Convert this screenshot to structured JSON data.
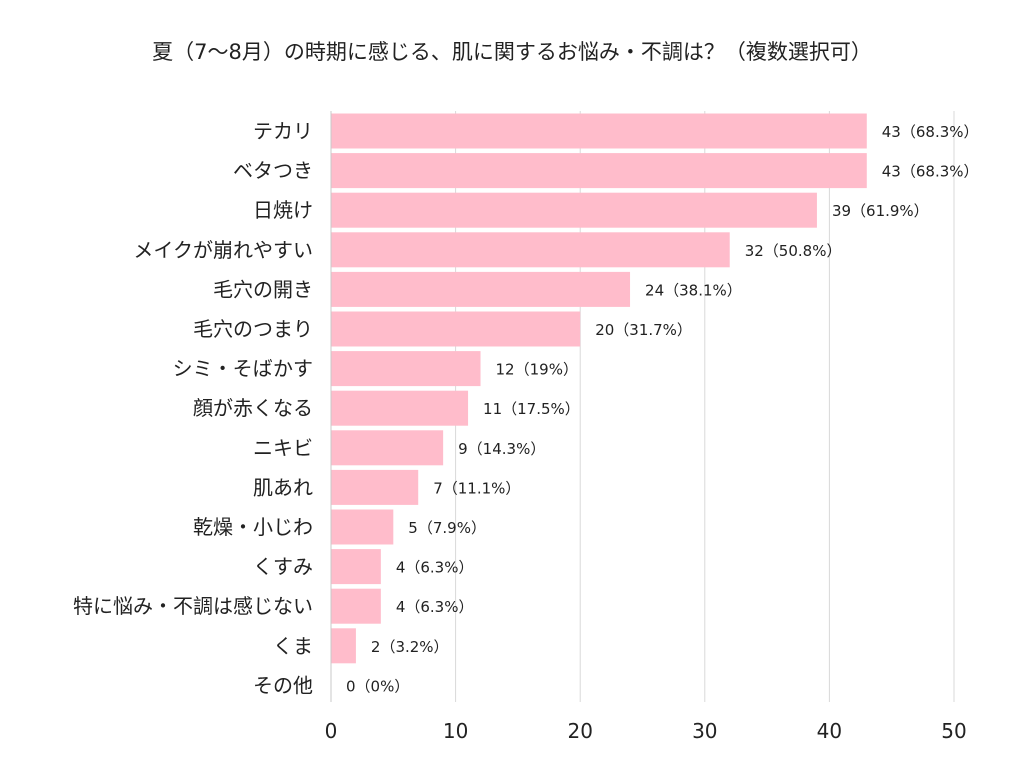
{
  "chart_data": {
    "type": "bar",
    "orientation": "horizontal",
    "title": "夏（7〜8月）の時期に感じる、肌に関するお悩み・不調は？（複数選択可）",
    "categories": [
      "テカリ",
      "ベタつき",
      "日焼け",
      "メイクが崩れやすい",
      "毛穴の開き",
      "毛穴のつまり",
      "シミ・そばかす",
      "顔が赤くなる",
      "ニキビ",
      "肌あれ",
      "乾燥・小じわ",
      "くすみ",
      "特に悩み・不調は感じない",
      "くま",
      "その他"
    ],
    "values": [
      43,
      43,
      39,
      32,
      24,
      20,
      12,
      11,
      9,
      7,
      5,
      4,
      4,
      2,
      0
    ],
    "data_labels": [
      "43（68.3%）",
      "43（68.3%）",
      "39（61.9%）",
      "32（50.8%）",
      "24（38.1%）",
      "20（31.7%）",
      "12（19%）",
      "11（17.5%）",
      "9（14.3%）",
      "7（11.1%）",
      "5（7.9%）",
      "4（6.3%）",
      "4（6.3%）",
      "2（3.2%）",
      "0（0%）"
    ],
    "xlim": [
      0,
      50
    ],
    "xticks": [
      "0",
      "10",
      "20",
      "30",
      "40",
      "50"
    ],
    "xtick_values": [
      0,
      10,
      20,
      30,
      40,
      50
    ],
    "grid": true,
    "legend": "none",
    "colors": {
      "bar": "#ffbccb",
      "grid": "#d9d9d9"
    }
  }
}
